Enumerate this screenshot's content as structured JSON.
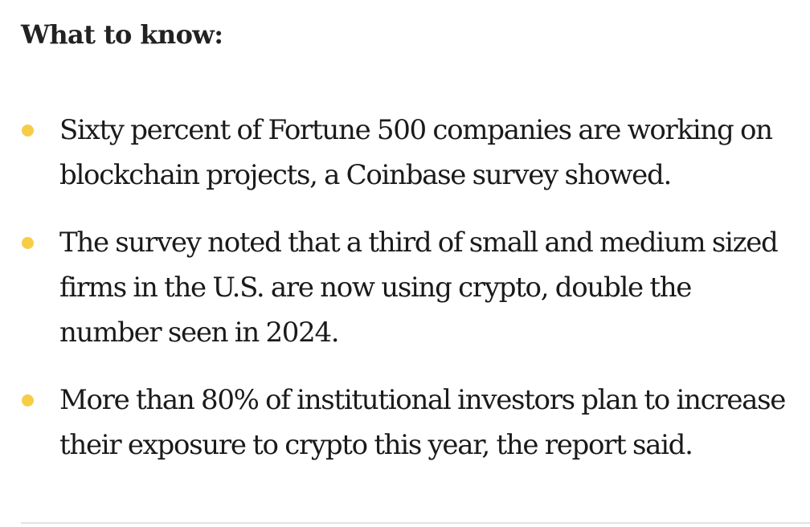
{
  "section": {
    "heading": "What to know:",
    "accent_color": "#f7cd46",
    "bullets": [
      {
        "text": "Sixty percent of Fortune 500 companies are working on blockchain projects, a Coinbase survey showed."
      },
      {
        "text": "The survey noted that a third of small and medium sized firms in the U.S. are now using crypto, double the number seen in 2024."
      },
      {
        "text": "More than 80% of institutional investors plan to increase their exposure to crypto this year, the report said."
      }
    ]
  }
}
